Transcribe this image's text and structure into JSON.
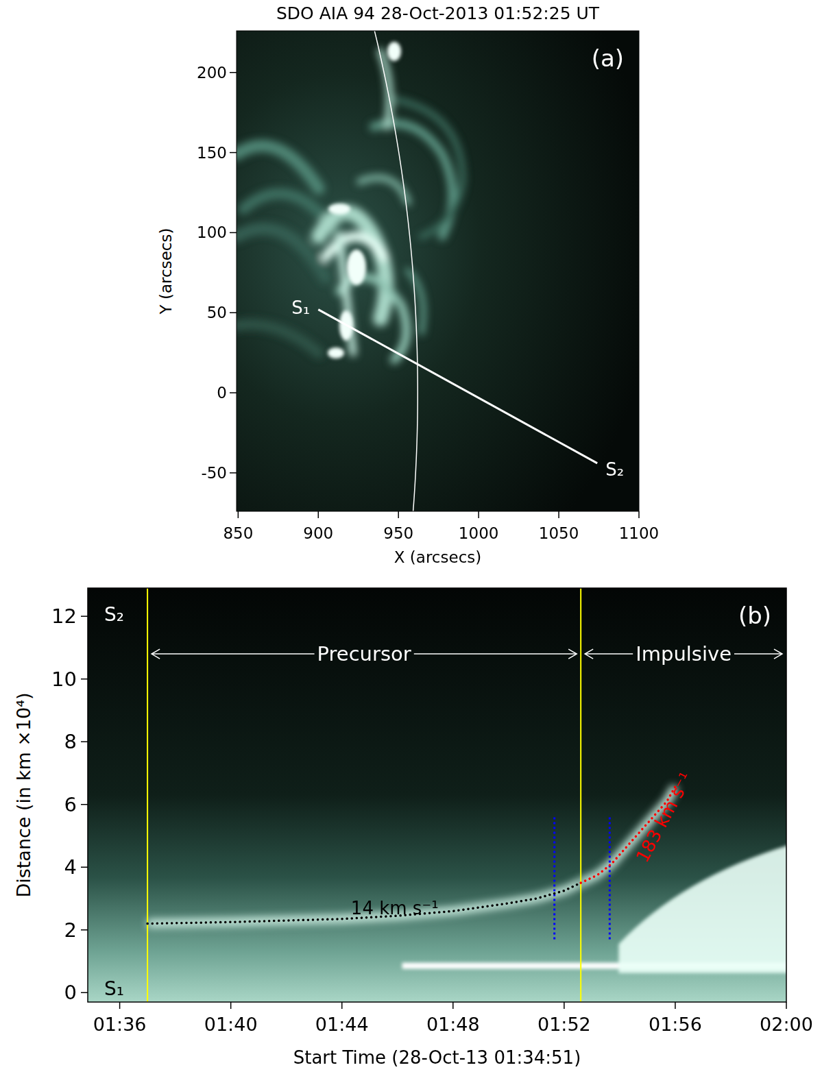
{
  "chart_data": [
    {
      "type": "image",
      "panel_label": "(a)",
      "title": "SDO AIA 94 28-Oct-2013 01:52:25 UT",
      "x_label": "X (arcsecs)",
      "y_label": "Y (arcsecs)",
      "xlim": [
        849,
        1100
      ],
      "ylim": [
        -74,
        226
      ],
      "xticks": [
        850,
        900,
        950,
        1000,
        1050,
        1100
      ],
      "yticks": [
        -50,
        0,
        50,
        100,
        150,
        200
      ],
      "limb_radius": 962,
      "slit": {
        "x": [
          900,
          1074
        ],
        "y": [
          52,
          -44
        ],
        "labels": [
          "S₁",
          "S₂"
        ]
      }
    },
    {
      "type": "line",
      "panel_label": "(b)",
      "x_label": "Start Time (28-Oct-13 01:34:51)",
      "y_label": "Distance (in km ×10⁴)",
      "xlim": [
        34.85,
        60
      ],
      "ylim": [
        -0.3,
        12.9
      ],
      "xticks": [
        {
          "value": 36,
          "label": "01:36"
        },
        {
          "value": 40,
          "label": "01:40"
        },
        {
          "value": 44,
          "label": "01:44"
        },
        {
          "value": 48,
          "label": "01:48"
        },
        {
          "value": 52,
          "label": "01:52"
        },
        {
          "value": 56,
          "label": "01:56"
        },
        {
          "value": 60,
          "label": "02:00"
        }
      ],
      "yticks": [
        0,
        2,
        4,
        6,
        8,
        10,
        12
      ],
      "series": [
        {
          "x": [
            37.0,
            40.0,
            44.0,
            46.0,
            48.0,
            50.0,
            51.0,
            52.0,
            52.6
          ],
          "values": [
            2.2,
            2.25,
            2.35,
            2.45,
            2.6,
            2.85,
            3.0,
            3.25,
            3.5
          ],
          "color": "#000000",
          "line_style": "dotted",
          "label": "14 km s⁻¹",
          "label_x": 45.9,
          "label_y": 2.72
        },
        {
          "x": [
            52.6,
            53.2,
            53.7,
            54.3,
            55.0,
            55.7,
            56.0
          ],
          "values": [
            3.5,
            3.75,
            4.1,
            4.7,
            5.4,
            6.1,
            6.57
          ],
          "color": "#ff0000",
          "line_style": "dotted",
          "label": "183 km s⁻¹",
          "label_x": 55.8,
          "label_y": 5.5
        }
      ],
      "vertical_lines": [
        {
          "x": 37.0,
          "color": "#ffff00"
        },
        {
          "x": 52.6,
          "color": "#ffff00"
        }
      ],
      "markers": {
        "x": [
          51.65,
          53.64
        ],
        "y": [
          1.7,
          5.6
        ],
        "color": "#0000ff",
        "line_style": "dotted"
      },
      "phases": [
        {
          "label": "Precursor",
          "x": [
            37.0,
            52.6
          ],
          "y": 10.8
        },
        {
          "label": "Impulsive",
          "x": [
            52.6,
            60
          ],
          "y": 10.8
        }
      ],
      "slit_labels": [
        "S₂",
        "S₁"
      ]
    }
  ]
}
